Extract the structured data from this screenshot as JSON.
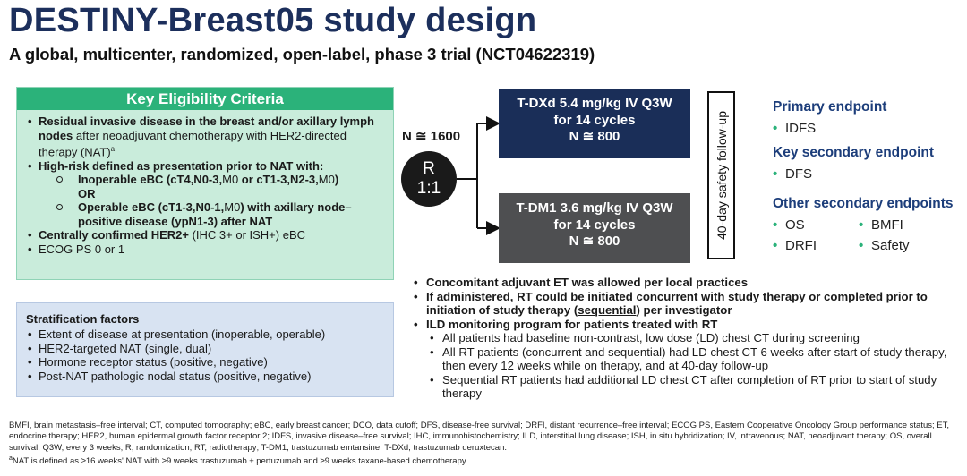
{
  "title": "DESTINY-Breast05 study design",
  "subtitle": "A global, multicenter, randomized, open-label, phase 3 trial (NCT04622319)",
  "eligibility": {
    "header": "Key Eligibility Criteria",
    "item1_bold": "Residual invasive disease in the breast and/or axillary lymph nodes",
    "item1_rest": " after neoadjuvant chemotherapy with HER2-directed therapy (NAT)",
    "item1_sup": "a",
    "item2": "High-risk defined as presentation prior to NAT with:",
    "sub1_a": "Inoperable eBC (cT4,N0-3,",
    "sub1_b": "M0",
    "sub1_c": " or cT1-3,N2-3,",
    "sub1_d": "M0",
    "sub1_e": ")",
    "sub1_or": "OR",
    "sub2_a": "Operable eBC (cT1-3,N0-1,",
    "sub2_b": "M0",
    "sub2_c": ") with axillary node–positive disease (ypN1-3) after NAT",
    "item3_bold": "Centrally confirmed HER2+",
    "item3_rest": " (IHC 3+ or ISH+) eBC",
    "item4": "ECOG PS 0 or 1"
  },
  "stratification": {
    "title": "Stratification factors",
    "items": [
      "Extent of disease at presentation (inoperable, operable)",
      "HER2-targeted NAT (single, dual)",
      "Hormone receptor status (positive, negative)",
      "Post-NAT pathologic nodal status (positive, negative)"
    ]
  },
  "design": {
    "n_label": "N ≅ 1600",
    "randomization_line1": "R",
    "randomization_line2": "1:1",
    "arm1": {
      "line1": "T-DXd 5.4 mg/kg IV Q3W",
      "line2": "for 14 cycles",
      "line3": "N ≅ 800"
    },
    "arm2": {
      "line1": "T-DM1 3.6 mg/kg IV Q3W",
      "line2": "for 14 cycles",
      "line3": "N ≅ 800"
    },
    "follow_up": "40-day safety follow-up"
  },
  "endpoints": {
    "primary_title": "Primary endpoint",
    "primary": "IDFS",
    "key_secondary_title": "Key secondary endpoint",
    "key_secondary": "DFS",
    "other_title": "Other secondary endpoints",
    "other": [
      "OS",
      "BMFI",
      "DRFI",
      "Safety"
    ]
  },
  "notes": {
    "n1": "Concomitant adjuvant ET was allowed per local practices",
    "n2_a": "If administered, RT could be initiated ",
    "n2_b": "concurrent",
    "n2_c": " with study therapy or completed prior to initiation of study therapy (",
    "n2_d": "sequential",
    "n2_e": ") per investigator",
    "n3": "ILD monitoring program for patients treated with RT",
    "sub": [
      "All patients had baseline non-contrast, low dose (LD) chest CT during screening",
      "All RT patients (concurrent and sequential) had LD chest CT 6 weeks after start of study therapy, then every 12 weeks while on therapy, and at 40-day follow-up",
      "Sequential RT patients had additional LD chest CT after completion of RT prior to start of study therapy"
    ]
  },
  "footnote": {
    "abbrev": "BMFI, brain metastasis–free interval; CT, computed tomography; eBC, early breast cancer; DCO, data cutoff; DFS, disease-free survival; DRFI, distant recurrence–free interval; ECOG PS, Eastern Cooperative Oncology Group performance status; ET, endocrine therapy; HER2, human epidermal growth factor receptor 2; IDFS, invasive disease–free survival; IHC, immunohistochemistry; ILD, interstitial lung disease; ISH, in situ hybridization; IV, intravenous; NAT, neoadjuvant therapy; OS, overall survival; Q3W, every 3 weeks; R, randomization; RT, radiotherapy; T-DM1, trastuzumab emtansine; T-DXd, trastuzumab deruxtecan.",
    "sup": "a",
    "note": "NAT is defined as ≥16 weeks' NAT with ≥9 weeks trastuzumab ± pertuzumab and ≥9 weeks taxane-based chemotherapy."
  }
}
